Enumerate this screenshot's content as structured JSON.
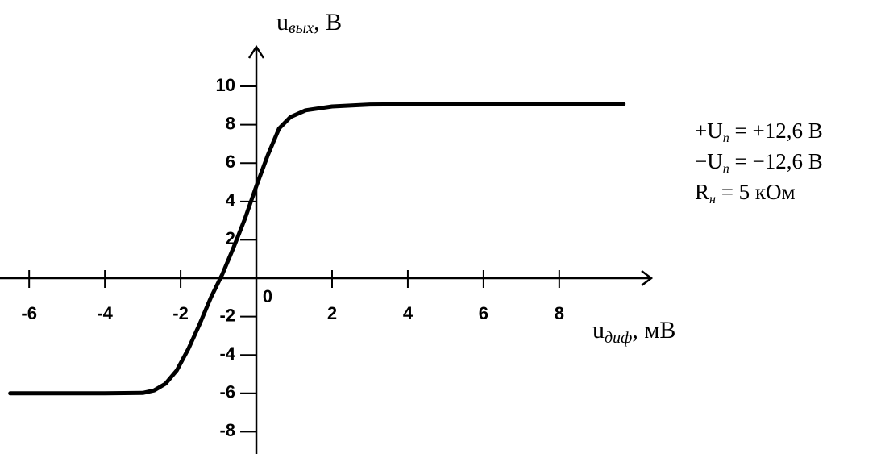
{
  "chart_data": {
    "type": "line",
    "y_label": {
      "main": "u",
      "sub": "вых",
      "unit": ", В"
    },
    "x_label": {
      "main": "u",
      "sub": "диф",
      "unit": ", мВ"
    },
    "annotations": [
      {
        "main": "+U",
        "sub": "п",
        "rest": " = +12,6 В"
      },
      {
        "main": "−U",
        "sub": "п",
        "rest": " = −12,6 В"
      },
      {
        "main": "R",
        "sub": "н",
        "rest": " = 5 кОм"
      }
    ],
    "xlim": [
      -6.77,
      10.43
    ],
    "ylim": [
      -9.16,
      12.06
    ],
    "xticks": [
      -6,
      -4,
      -2,
      0,
      2,
      4,
      6,
      8
    ],
    "yticks": [
      -8,
      -6,
      -4,
      -2,
      2,
      4,
      6,
      8,
      10
    ],
    "series": [
      {
        "color": "#000000",
        "x": [
          -6.5,
          -4,
          -3,
          -2.7,
          -2.4,
          -2.1,
          -1.8,
          -1.5,
          -1.2,
          -0.9,
          -0.6,
          -0.3,
          0,
          0.3,
          0.6,
          0.9,
          1.3,
          2,
          3,
          5,
          7,
          9.7
        ],
        "values": [
          -6,
          -6,
          -5.98,
          -5.85,
          -5.5,
          -4.8,
          -3.7,
          -2.4,
          -1.0,
          0.2,
          1.6,
          3.1,
          4.8,
          6.4,
          7.8,
          8.4,
          8.75,
          8.95,
          9.05,
          9.08,
          9.08,
          9.08
        ]
      }
    ]
  }
}
